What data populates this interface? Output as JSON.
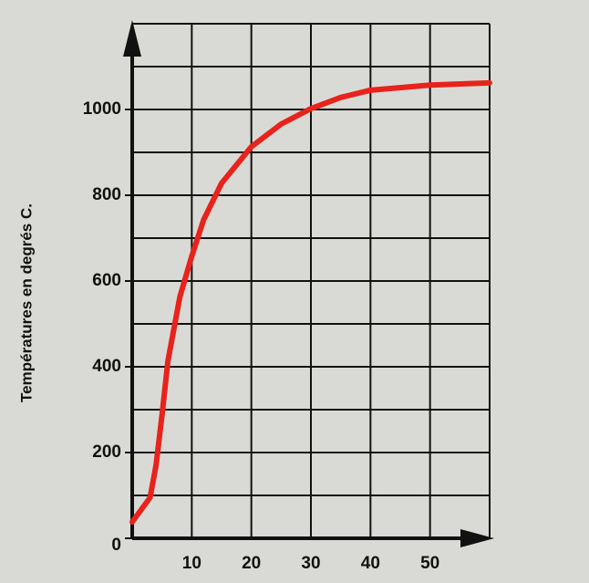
{
  "chart_data": {
    "type": "line",
    "y_label": "Températures en degrés C.",
    "x": [
      0,
      3,
      4,
      5,
      6,
      8,
      10,
      12,
      15,
      20,
      25,
      30,
      35,
      40,
      50,
      60
    ],
    "series": [
      {
        "color": "#e8231c",
        "values": [
          38,
          95,
          170,
          287,
          414,
          563,
          658,
          743,
          828,
          913,
          966,
          1002,
          1028,
          1045,
          1057,
          1062
        ]
      }
    ],
    "xlim": [
      0,
      60
    ],
    "ylim": [
      0,
      1200
    ],
    "xticks": [
      10,
      20,
      30,
      40,
      50
    ],
    "yticks": [
      0,
      200,
      400,
      600,
      800,
      1000
    ],
    "xgrid": [
      0,
      10,
      20,
      30,
      40,
      50,
      60
    ],
    "ygrid": [
      0,
      100,
      200,
      300,
      400,
      500,
      600,
      700,
      800,
      900,
      1000,
      1100,
      1200
    ],
    "grid": true
  }
}
